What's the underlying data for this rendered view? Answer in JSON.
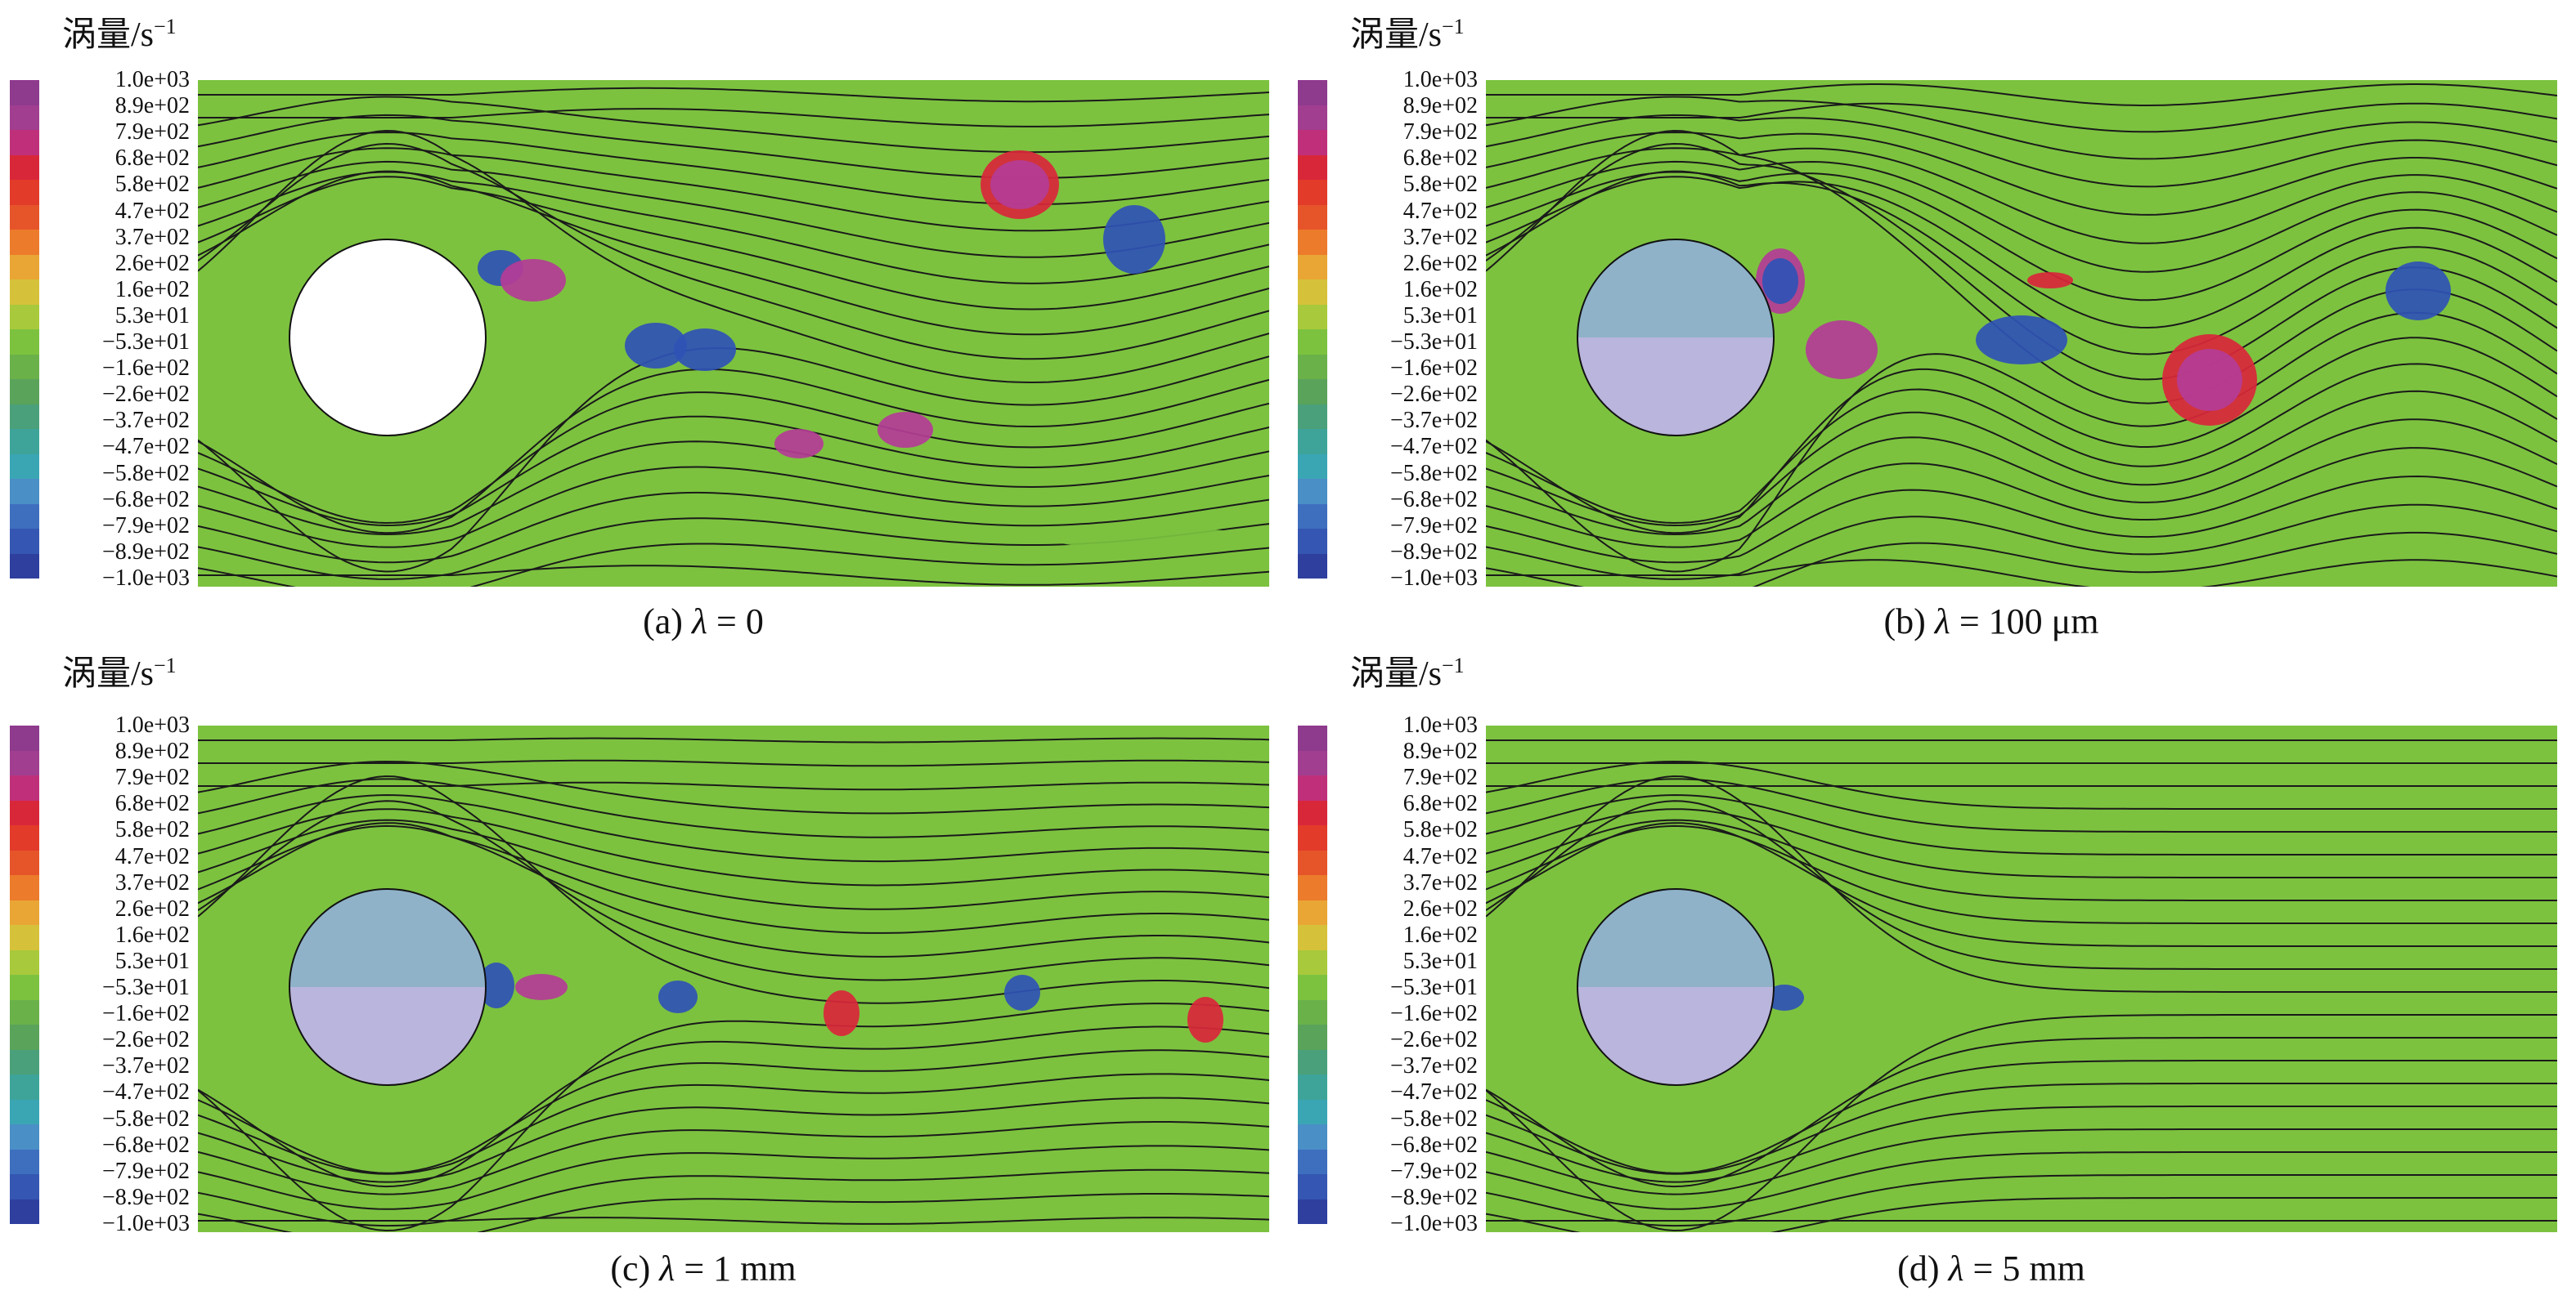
{
  "legend": {
    "title": "涡量/s",
    "exponent": "−1",
    "ticks": [
      "1.0e+03",
      "8.9e+02",
      "7.9e+02",
      "6.8e+02",
      "5.8e+02",
      "4.7e+02",
      "3.7e+02",
      "2.6e+02",
      "1.6e+02",
      "5.3e+01",
      "−5.3e+01",
      "−1.6e+02",
      "−2.6e+02",
      "−3.7e+02",
      "−4.7e+02",
      "−5.8e+02",
      "−6.8e+02",
      "−7.9e+02",
      "−8.9e+02",
      "−1.0e+03"
    ],
    "colors": [
      "#8e3a8d",
      "#a13e90",
      "#c0307a",
      "#d9273a",
      "#e23b2a",
      "#e6552a",
      "#ec7b2b",
      "#e9a634",
      "#d6c23a",
      "#a8c93b",
      "#7cc23f",
      "#6ab14a",
      "#5aa35b",
      "#4aa07a",
      "#3ea49a",
      "#3aa6b4",
      "#4a8fc6",
      "#3e6fbf",
      "#3556b2",
      "#2e3f9e"
    ]
  },
  "panels": [
    {
      "id": "a",
      "caption_prefix": "(a) ",
      "lambda": "λ",
      "caption_suffix": " = 0",
      "cylinder": "white",
      "wake": "strong"
    },
    {
      "id": "b",
      "caption_prefix": "(b) ",
      "lambda": "λ",
      "caption_suffix": " = 100 μm",
      "cylinder": "porous",
      "wake": "medium"
    },
    {
      "id": "c",
      "caption_prefix": "(c) ",
      "lambda": "λ",
      "caption_suffix": " = 1 mm",
      "cylinder": "porous",
      "wake": "weak"
    },
    {
      "id": "d",
      "caption_prefix": "(d) ",
      "lambda": "λ",
      "caption_suffix": " = 5 mm",
      "cylinder": "porous",
      "wake": "none"
    }
  ],
  "colors": {
    "background_field": "#7cc23f",
    "streamline": "#1a1a1a",
    "cylinder_top": "#8fb2c9",
    "cylinder_bottom": "#b9b5dc",
    "vortex_positive": "#b43c96",
    "vortex_negative": "#2f52b5",
    "vortex_red": "#d9273a"
  }
}
